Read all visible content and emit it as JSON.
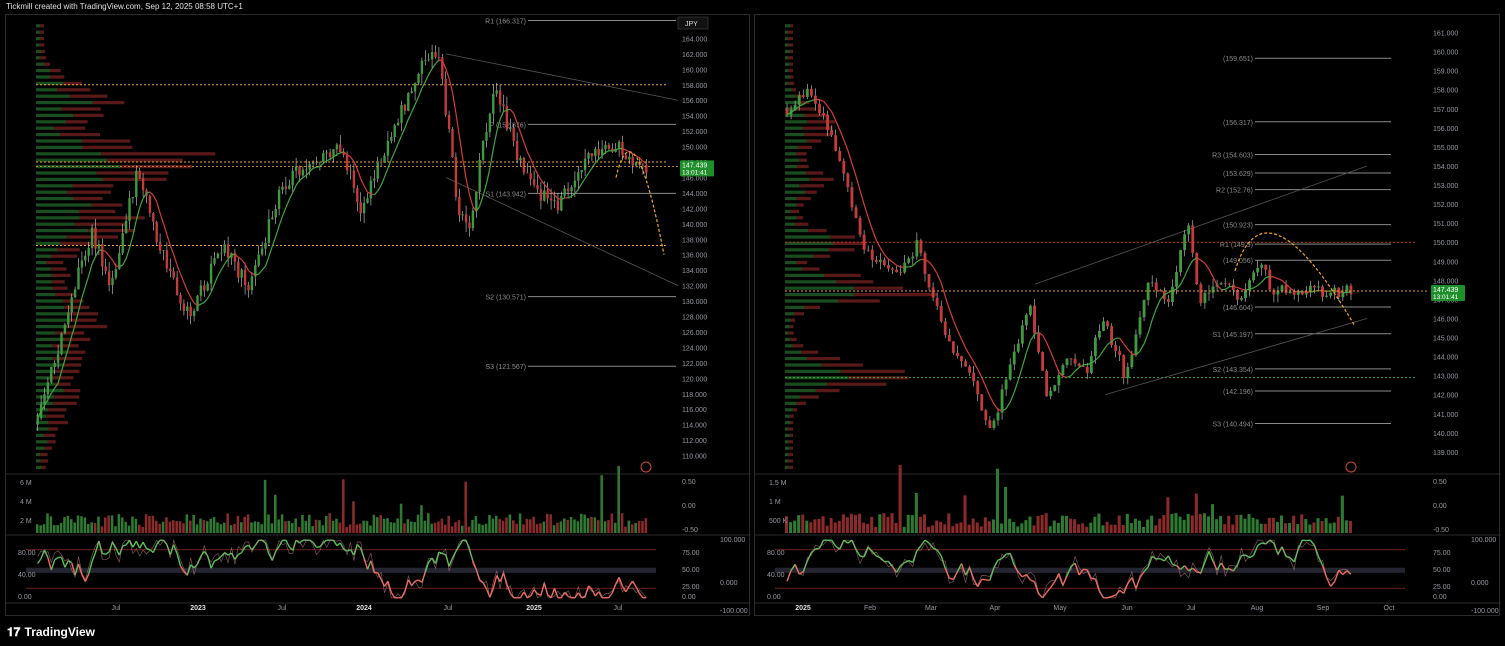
{
  "header": {
    "text": "Tickmill created with TradingView.com, Sep 12, 2025 08:58 UTC+1"
  },
  "footer": {
    "logo": "TradingView"
  },
  "colors": {
    "bull": "#3f9a3f",
    "bear": "#c53a3a",
    "bg": "#000000",
    "grid": "#1e1e1e",
    "price_tag": "#1e8e2a",
    "orange": "#f5a623",
    "text": "#9598a1"
  },
  "chart_data": [
    {
      "type": "candlestick",
      "id": "left",
      "currency_label": "JPY",
      "price_axis": {
        "min": 108,
        "max": 166,
        "ticks": [
          "164.000",
          "162.000",
          "160.000",
          "158.000",
          "156.000",
          "154.000",
          "152.000",
          "150.000",
          "148.000",
          "146.000",
          "144.000",
          "142.000",
          "140.000",
          "138.000",
          "136.000",
          "134.000",
          "132.000",
          "130.000",
          "128.000",
          "126.000",
          "124.000",
          "122.000",
          "120.000",
          "118.000",
          "116.000",
          "114.000",
          "112.000",
          "110.000"
        ]
      },
      "last_price": {
        "value": "147.439",
        "countdown": "13:01:41"
      },
      "time_axis": [
        "Jul",
        "2023",
        "Jul",
        "2024",
        "Jul",
        "2025",
        "Jul"
      ],
      "path": [
        [
          0,
          114
        ],
        [
          0.05,
          129
        ],
        [
          0.09,
          139
        ],
        [
          0.12,
          132
        ],
        [
          0.165,
          147
        ],
        [
          0.2,
          137
        ],
        [
          0.25,
          128
        ],
        [
          0.3,
          137
        ],
        [
          0.35,
          132
        ],
        [
          0.4,
          145
        ],
        [
          0.45,
          148
        ],
        [
          0.5,
          150
        ],
        [
          0.53,
          141
        ],
        [
          0.58,
          152
        ],
        [
          0.63,
          160
        ],
        [
          0.66,
          162
        ],
        [
          0.69,
          142
        ],
        [
          0.71,
          140
        ],
        [
          0.75,
          158
        ],
        [
          0.8,
          146
        ],
        [
          0.85,
          142
        ],
        [
          0.9,
          148
        ],
        [
          0.95,
          150
        ],
        [
          1.0,
          147.4
        ]
      ],
      "levels": [
        {
          "label": "R1 (166.317)",
          "value": 166.317
        },
        {
          "label": "P (152.876)",
          "value": 152.876
        },
        {
          "label": "S1 (143.942)",
          "value": 143.942
        },
        {
          "label": "S2 (130.571)",
          "value": 130.571
        },
        {
          "label": "S3 (121.567)",
          "value": 121.567
        }
      ],
      "volume_axis": [
        "6 M",
        "4 M",
        "2 M"
      ],
      "oscillator_axis_left": [
        "80.00",
        "40.00",
        "0.00"
      ],
      "oscillator_axis_right": [
        "100.000",
        "75.00",
        "50.00",
        "0.000",
        "25.00",
        "0.00",
        "-100.000"
      ],
      "volume_axis_right": [
        "0.50",
        "0.00",
        "-0.50"
      ]
    },
    {
      "type": "candlestick",
      "id": "right",
      "price_axis": {
        "min": 138,
        "max": 161.5,
        "ticks": [
          "161.000",
          "160.000",
          "159.000",
          "158.000",
          "157.000",
          "156.000",
          "155.000",
          "154.000",
          "153.000",
          "152.000",
          "151.000",
          "150.000",
          "149.000",
          "148.000",
          "147.000",
          "146.000",
          "145.000",
          "144.000",
          "143.000",
          "142.000",
          "141.000",
          "140.000",
          "139.000"
        ]
      },
      "last_price": {
        "value": "147.439",
        "countdown": "13:01:41"
      },
      "time_axis": [
        "2025",
        "Feb",
        "Mar",
        "Apr",
        "May",
        "Jun",
        "Jul",
        "Aug",
        "Sep",
        "Oct"
      ],
      "path": [
        [
          0,
          157
        ],
        [
          0.04,
          158
        ],
        [
          0.07,
          156
        ],
        [
          0.1,
          154
        ],
        [
          0.13,
          150
        ],
        [
          0.16,
          149
        ],
        [
          0.2,
          148
        ],
        [
          0.23,
          150
        ],
        [
          0.26,
          147
        ],
        [
          0.3,
          144
        ],
        [
          0.33,
          143
        ],
        [
          0.36,
          140
        ],
        [
          0.39,
          143
        ],
        [
          0.43,
          147
        ],
        [
          0.46,
          142
        ],
        [
          0.5,
          144
        ],
        [
          0.53,
          143
        ],
        [
          0.56,
          146
        ],
        [
          0.6,
          143
        ],
        [
          0.64,
          148
        ],
        [
          0.68,
          147
        ],
        [
          0.71,
          151
        ],
        [
          0.73,
          147
        ],
        [
          0.77,
          148
        ],
        [
          0.81,
          147
        ],
        [
          0.84,
          149
        ],
        [
          0.86,
          147.4
        ]
      ],
      "levels": [
        {
          "label": "(159.651)",
          "value": 159.651
        },
        {
          "label": "(156.317)",
          "value": 156.317
        },
        {
          "label": "R3 (154.603)",
          "value": 154.603
        },
        {
          "label": "(153.629)",
          "value": 153.629
        },
        {
          "label": "R2 (152.76)",
          "value": 152.76
        },
        {
          "label": "(150.923)",
          "value": 150.923
        },
        {
          "label": "R1 (149.9)",
          "value": 149.9
        },
        {
          "label": "(149.056)",
          "value": 149.056
        },
        {
          "label": "(146.604)",
          "value": 146.604
        },
        {
          "label": "S1 (145.197)",
          "value": 145.197
        },
        {
          "label": "S2 (143.354)",
          "value": 143.354
        },
        {
          "label": "(142.196)",
          "value": 142.196
        },
        {
          "label": "S3 (140.494)",
          "value": 140.494
        }
      ],
      "volume_axis": [
        "1.5 M",
        "1 M",
        "500 K"
      ],
      "oscillator_axis_left": [
        "80.00",
        "40.00",
        "0.00"
      ],
      "oscillator_axis_right": [
        "100.000",
        "75.00",
        "50.00",
        "0.000",
        "25.00",
        "0.00",
        "-100.000"
      ],
      "volume_axis_right": [
        "0.50",
        "0.00",
        "-0.50"
      ]
    }
  ]
}
